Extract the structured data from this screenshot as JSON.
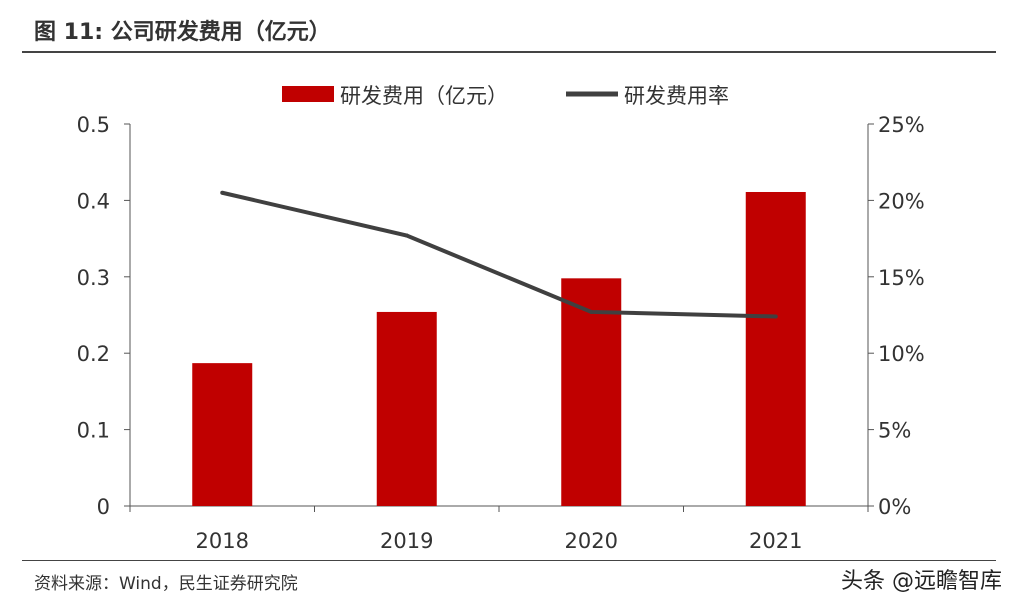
{
  "title": "图 11: 公司研发费用（亿元）",
  "source": "资料来源：Wind，民生证券研究院",
  "watermark": "头条 @远瞻智库",
  "chart_data": {
    "type": "bar+line",
    "categories": [
      "2018",
      "2019",
      "2020",
      "2021"
    ],
    "series": [
      {
        "name": "研发费用（亿元）",
        "type": "bar",
        "axis": "left",
        "color": "#C00000",
        "values": [
          0.187,
          0.254,
          0.298,
          0.411
        ]
      },
      {
        "name": "研发费用率",
        "type": "line",
        "axis": "right",
        "color": "#404040",
        "values": [
          20.5,
          17.7,
          12.7,
          12.4
        ]
      }
    ],
    "left_axis": {
      "range": [
        0,
        0.5
      ],
      "ticks": [
        "0",
        "0.1",
        "0.2",
        "0.3",
        "0.4",
        "0.5"
      ]
    },
    "right_axis": {
      "range": [
        0,
        25
      ],
      "ticks": [
        "0%",
        "5%",
        "10%",
        "15%",
        "20%",
        "25%"
      ]
    },
    "legend": "top",
    "grid": false
  }
}
